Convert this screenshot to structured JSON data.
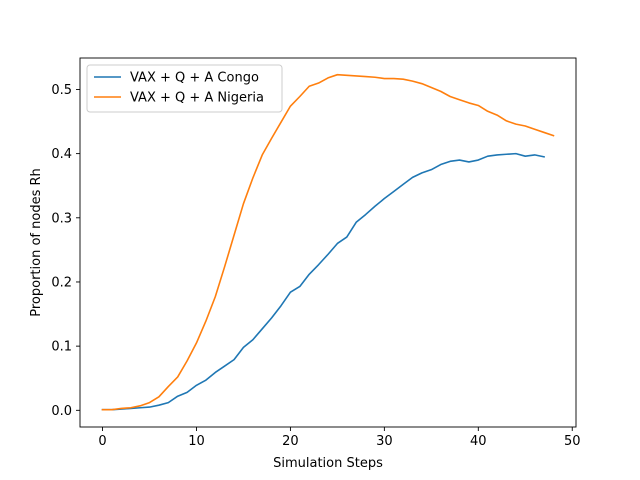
{
  "chart_data": {
    "type": "line",
    "title": "",
    "xlabel": "Simulation Steps",
    "ylabel": "Proportion of nodes Rh",
    "xlim": [
      -2.4,
      50.4
    ],
    "ylim": [
      -0.026,
      0.549
    ],
    "x_ticks": [
      0,
      10,
      20,
      30,
      40,
      50
    ],
    "x_tick_labels": [
      "0",
      "10",
      "20",
      "30",
      "40",
      "50"
    ],
    "y_ticks": [
      0.0,
      0.1,
      0.2,
      0.3,
      0.4,
      0.5
    ],
    "y_tick_labels": [
      "0.0",
      "0.1",
      "0.2",
      "0.3",
      "0.4",
      "0.5"
    ],
    "grid": false,
    "legend_position": "upper-left",
    "series": [
      {
        "name": "VAX + Q + A Congo",
        "color": "#1f77b4",
        "x": [
          0,
          1,
          2,
          3,
          4,
          5,
          6,
          7,
          8,
          9,
          10,
          11,
          12,
          13,
          14,
          15,
          16,
          17,
          18,
          19,
          20,
          21,
          22,
          23,
          24,
          25,
          26,
          27,
          28,
          29,
          30,
          31,
          32,
          33,
          34,
          35,
          36,
          37,
          38,
          39,
          40,
          41,
          42,
          43,
          44,
          45,
          46,
          47
        ],
        "y": [
          0.001,
          0.001,
          0.002,
          0.003,
          0.004,
          0.005,
          0.008,
          0.012,
          0.022,
          0.028,
          0.039,
          0.047,
          0.059,
          0.069,
          0.079,
          0.098,
          0.11,
          0.127,
          0.144,
          0.163,
          0.184,
          0.193,
          0.212,
          0.227,
          0.243,
          0.26,
          0.27,
          0.293,
          0.305,
          0.318,
          0.33,
          0.341,
          0.352,
          0.363,
          0.37,
          0.375,
          0.383,
          0.388,
          0.39,
          0.387,
          0.39,
          0.396,
          0.398,
          0.399,
          0.4,
          0.396,
          0.398,
          0.395
        ]
      },
      {
        "name": "VAX + Q + A Nigeria",
        "color": "#ff7f0e",
        "x": [
          0,
          1,
          2,
          3,
          4,
          5,
          6,
          7,
          8,
          9,
          10,
          11,
          12,
          13,
          14,
          15,
          16,
          17,
          18,
          19,
          20,
          21,
          22,
          23,
          24,
          25,
          26,
          27,
          28,
          29,
          30,
          31,
          32,
          33,
          34,
          35,
          36,
          37,
          38,
          39,
          40,
          41,
          42,
          43,
          44,
          45,
          46,
          47,
          48
        ],
        "y": [
          0.001,
          0.001,
          0.003,
          0.004,
          0.007,
          0.012,
          0.021,
          0.037,
          0.052,
          0.077,
          0.105,
          0.139,
          0.177,
          0.224,
          0.273,
          0.322,
          0.362,
          0.398,
          0.424,
          0.449,
          0.474,
          0.489,
          0.505,
          0.51,
          0.518,
          0.523,
          0.522,
          0.521,
          0.52,
          0.519,
          0.517,
          0.517,
          0.516,
          0.513,
          0.509,
          0.503,
          0.497,
          0.489,
          0.484,
          0.479,
          0.475,
          0.466,
          0.46,
          0.451,
          0.446,
          0.443,
          0.438,
          0.433,
          0.428
        ]
      }
    ]
  }
}
